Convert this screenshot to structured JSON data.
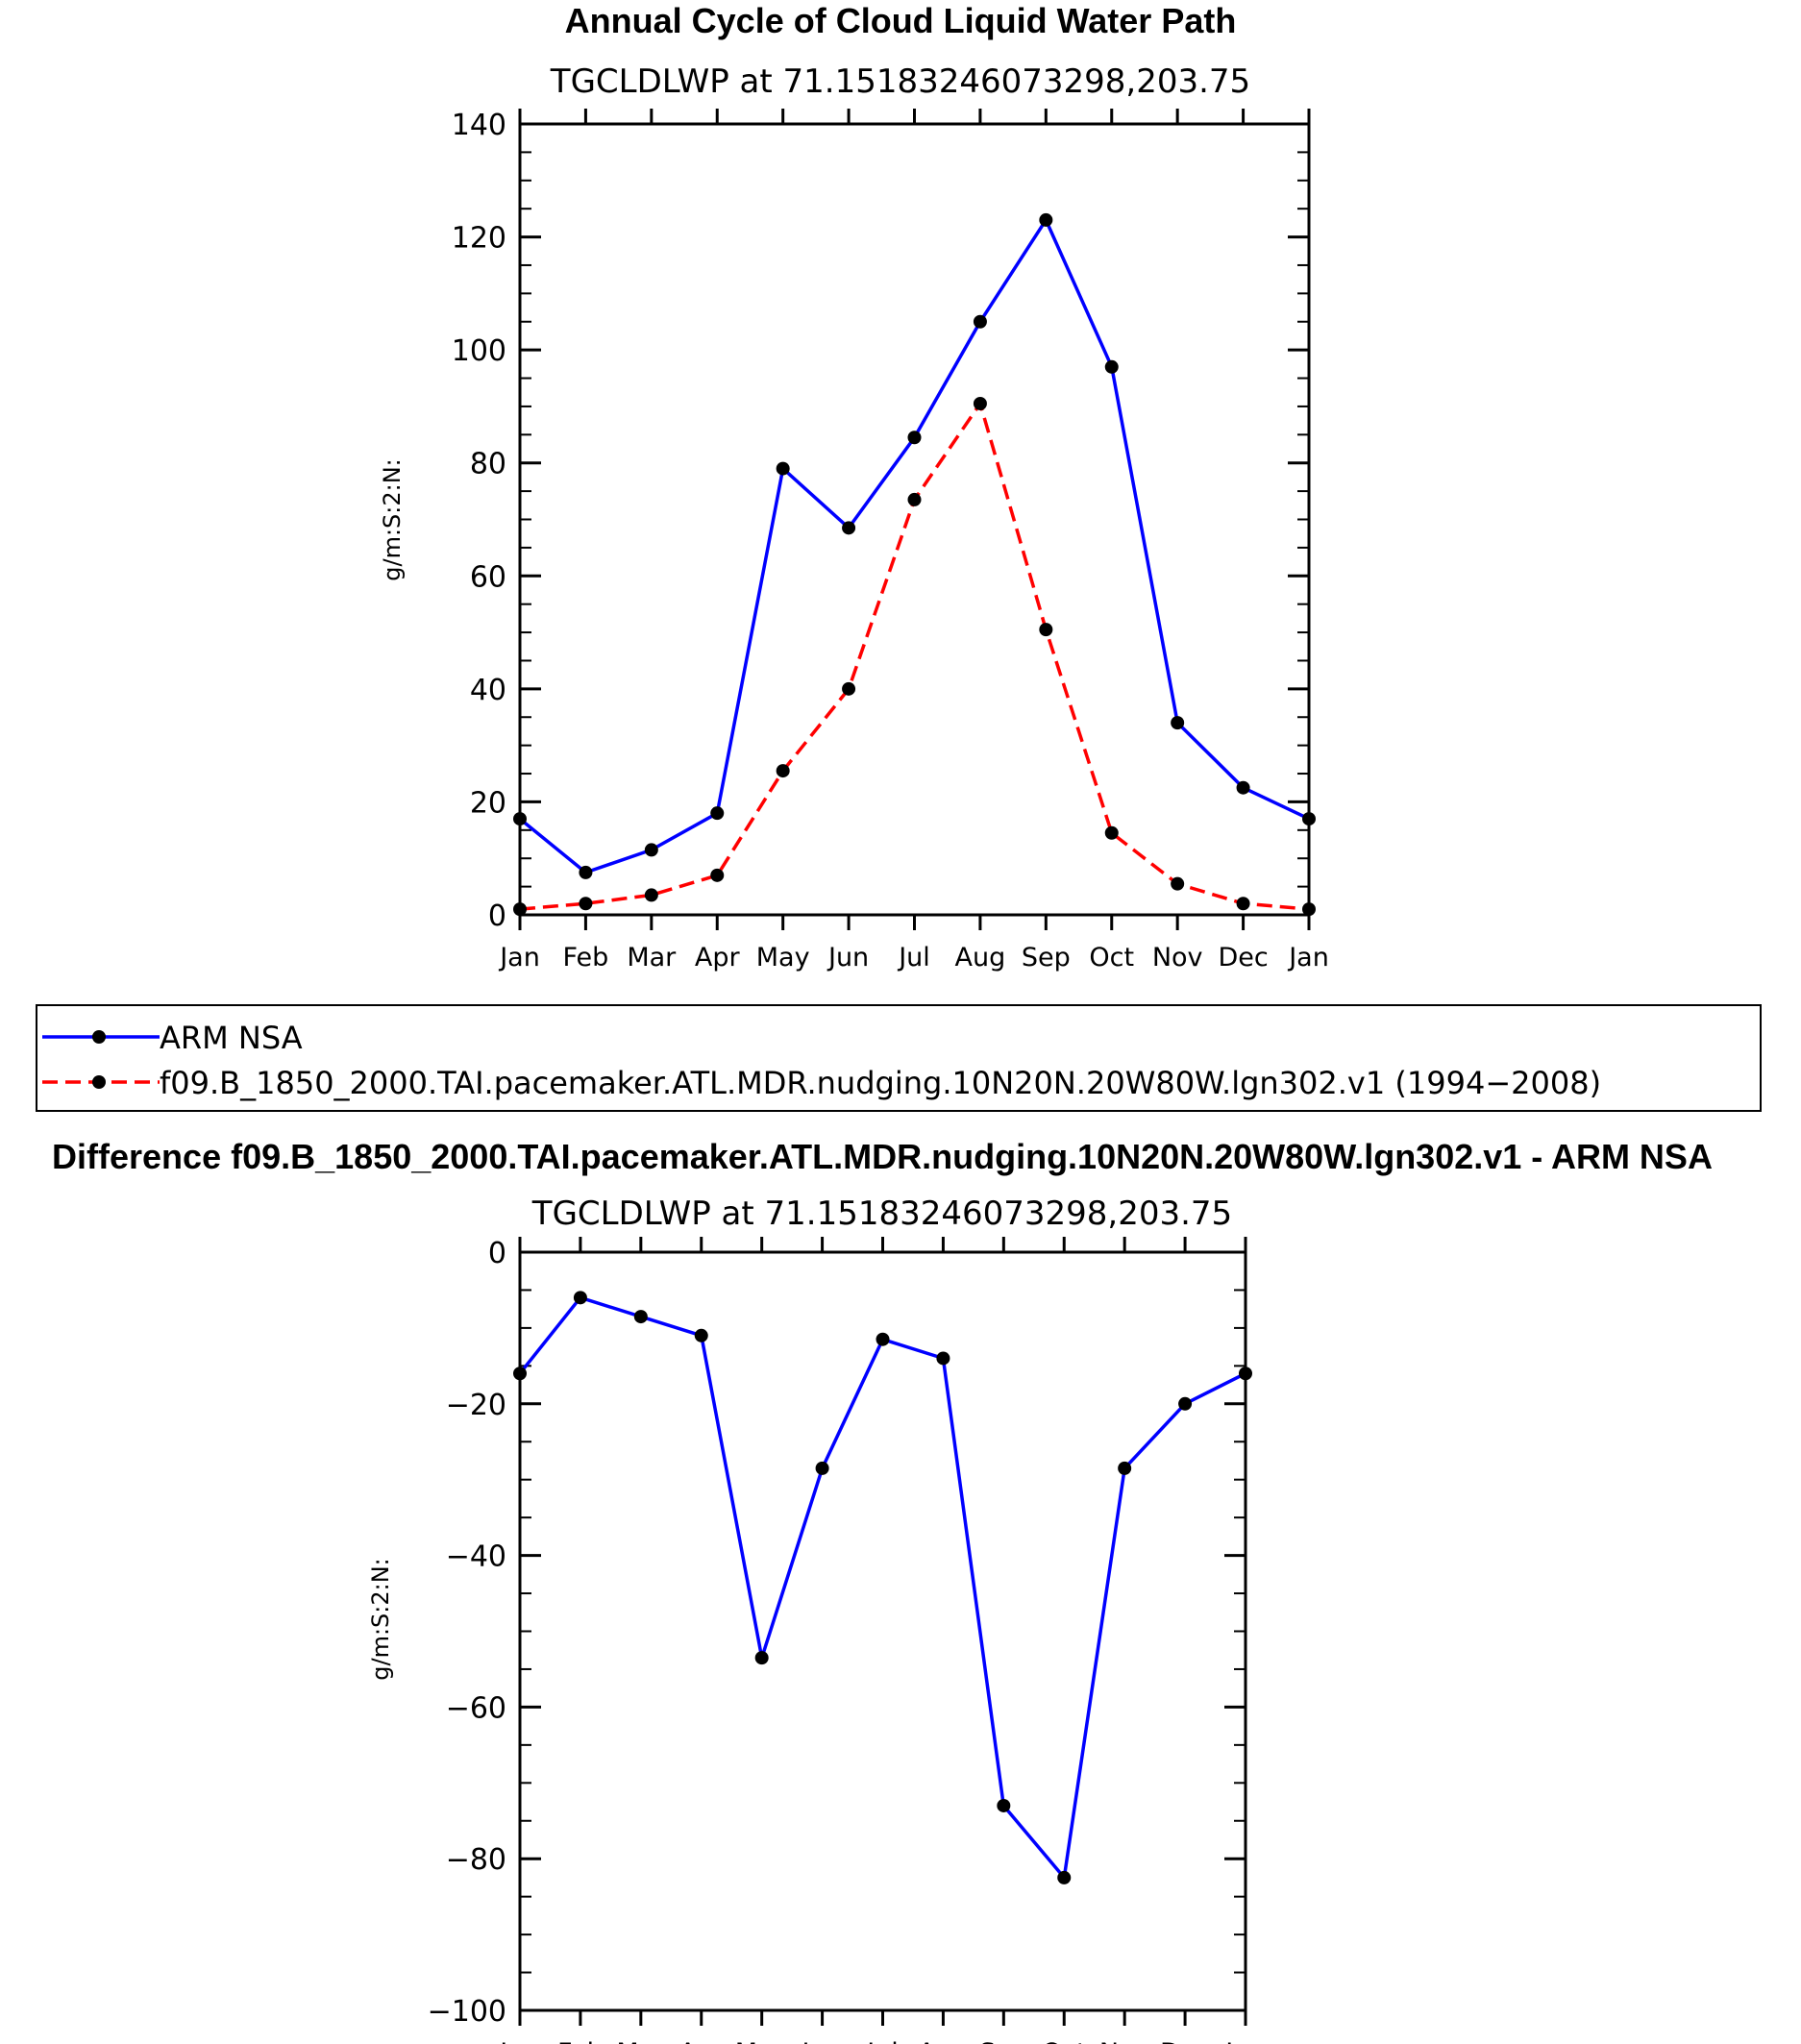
{
  "chart_data": [
    {
      "type": "line",
      "title": "Annual Cycle of Cloud Liquid Water Path",
      "subtitle": "TGCLDLWP  at  71.15183246073298,203.75",
      "ylabel": "g/m:S:2:N:",
      "xlabel": "",
      "ylim": [
        0,
        140
      ],
      "yticks": [
        0,
        20,
        40,
        60,
        80,
        100,
        120,
        140
      ],
      "ytick_labels": [
        "0",
        "20",
        "40",
        "60",
        "80",
        "100",
        "120",
        "140"
      ],
      "categories": [
        "Jan",
        "Feb",
        "Mar",
        "Apr",
        "May",
        "Jun",
        "Jul",
        "Aug",
        "Sep",
        "Oct",
        "Nov",
        "Dec",
        "Jan"
      ],
      "series": [
        {
          "name": "ARM  NSA",
          "color": "#0000ff",
          "dash": "solid",
          "values": [
            17,
            7.5,
            11.5,
            18,
            79,
            68.5,
            84.5,
            105,
            123,
            97,
            34,
            22.5,
            17
          ]
        },
        {
          "name": "f09.B_1850_2000.TAI.pacemaker.ATL.MDR.nudging.10N20N.20W80W.lgn302.v1  (1994−2008)",
          "color": "#ff0000",
          "dash": "dashed",
          "values": [
            1,
            2,
            3.5,
            7,
            25.5,
            40,
            73.5,
            90.5,
            50.5,
            14.5,
            5.5,
            2,
            1
          ]
        }
      ],
      "legend": "below"
    },
    {
      "type": "line",
      "title": "Difference f09.B_1850_2000.TAI.pacemaker.ATL.MDR.nudging.10N20N.20W80W.lgn302.v1 - ARM NSA",
      "subtitle": "TGCLDLWP  at  71.15183246073298,203.75",
      "ylabel": "g/m:S:2:N:",
      "xlabel": "",
      "ylim": [
        -100,
        0
      ],
      "yticks": [
        -100,
        -80,
        -60,
        -40,
        -20,
        0
      ],
      "ytick_labels": [
        "−100",
        "−80",
        "−60",
        "−40",
        "−20",
        "0"
      ],
      "categories": [
        "Jan",
        "Feb",
        "Mar",
        "Apr",
        "May",
        "Jun",
        "Jul",
        "Aug",
        "Sep",
        "Oct",
        "Nov",
        "Dec",
        "Jan"
      ],
      "series": [
        {
          "name": "Difference",
          "color": "#0000ff",
          "dash": "solid",
          "values": [
            -16,
            -6,
            -8.5,
            -11,
            -53.5,
            -28.5,
            -11.5,
            -14,
            -73,
            -82.5,
            -28.5,
            -20,
            -16
          ]
        }
      ]
    }
  ]
}
